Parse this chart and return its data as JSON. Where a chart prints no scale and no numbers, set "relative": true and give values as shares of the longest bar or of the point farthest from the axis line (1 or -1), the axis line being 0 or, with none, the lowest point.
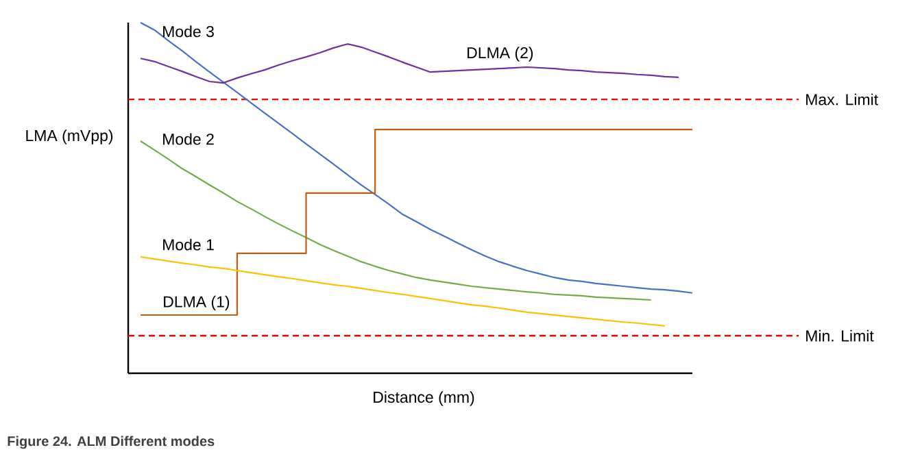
{
  "chart_data": {
    "type": "line",
    "relative": true,
    "title": "Figure 24.  ALM Different modes",
    "xlabel": "Distance (mm)",
    "ylabel": "LMA (mVpp)",
    "categories": [
      null,
      null,
      null,
      null,
      null,
      null,
      null,
      null,
      null,
      null,
      null,
      null,
      null,
      null,
      null,
      null,
      null,
      null,
      null,
      null,
      null,
      null,
      null,
      null,
      null,
      null,
      null,
      null,
      null,
      null,
      null,
      null,
      null,
      null,
      null,
      null,
      null,
      null,
      null,
      null,
      null
    ],
    "series": [
      {
        "name": "Mode 3",
        "color": "#4472c4",
        "values": [
          1.0,
          0.979,
          0.949,
          0.92,
          0.889,
          0.859,
          0.83,
          0.801,
          0.771,
          0.742,
          0.713,
          0.684,
          0.654,
          0.625,
          0.596,
          0.566,
          0.537,
          0.51,
          0.482,
          0.453,
          0.432,
          0.41,
          0.391,
          0.371,
          0.352,
          0.334,
          0.318,
          0.305,
          0.293,
          0.283,
          0.273,
          0.266,
          0.262,
          0.256,
          0.252,
          0.248,
          0.244,
          0.24,
          0.238,
          0.234,
          0.229
        ]
      },
      {
        "name": "DLMA (2)",
        "color": "#7030a0",
        "values": [
          0.898,
          0.889,
          0.875,
          0.861,
          0.846,
          0.832,
          0.828,
          0.842,
          0.854,
          0.865,
          0.879,
          0.891,
          0.902,
          0.914,
          0.928,
          0.939,
          0.93,
          0.916,
          0.902,
          0.887,
          0.873,
          0.859,
          0.861,
          0.863,
          0.865,
          0.867,
          0.869,
          0.871,
          0.873,
          0.871,
          0.869,
          0.865,
          0.863,
          0.859,
          0.857,
          0.855,
          0.852,
          0.85,
          0.846,
          0.844,
          null
        ]
      },
      {
        "name": "Mode 2",
        "color": "#70ad47",
        "values": [
          0.662,
          0.637,
          0.611,
          0.584,
          0.561,
          0.537,
          0.514,
          0.49,
          0.469,
          0.447,
          0.426,
          0.406,
          0.387,
          0.367,
          0.35,
          0.334,
          0.318,
          0.305,
          0.293,
          0.283,
          0.273,
          0.266,
          0.26,
          0.254,
          0.248,
          0.244,
          0.24,
          0.236,
          0.232,
          0.229,
          0.225,
          0.223,
          0.221,
          0.217,
          0.215,
          0.213,
          0.211,
          0.209,
          null,
          null,
          null
        ]
      },
      {
        "name": "DLMA (1)",
        "color": "#c55a11",
        "type": "step",
        "values": [
          0.166,
          0.166,
          0.166,
          0.166,
          0.166,
          0.166,
          0.166,
          0.342,
          0.342,
          0.342,
          0.342,
          0.342,
          0.514,
          0.514,
          0.514,
          0.514,
          0.514,
          0.695,
          0.695,
          0.695,
          0.695,
          0.695,
          0.695,
          0.695,
          0.695,
          0.695,
          0.695,
          0.695,
          0.695,
          0.695,
          0.695,
          0.695,
          0.695,
          0.695,
          0.695,
          0.695,
          0.695,
          0.695,
          0.695,
          0.695,
          0.695
        ]
      },
      {
        "name": "Mode 1",
        "color": "#ffc000",
        "values": [
          0.332,
          0.326,
          0.32,
          0.314,
          0.309,
          0.303,
          0.299,
          0.293,
          0.287,
          0.281,
          0.275,
          0.27,
          0.264,
          0.258,
          0.252,
          0.248,
          0.242,
          0.236,
          0.23,
          0.225,
          0.219,
          0.213,
          0.207,
          0.201,
          0.195,
          0.191,
          0.186,
          0.18,
          0.174,
          0.17,
          0.166,
          0.162,
          0.158,
          0.154,
          0.15,
          0.146,
          0.143,
          0.139,
          0.135,
          null,
          null
        ]
      }
    ],
    "ref_lines": [
      {
        "axis": "y",
        "value": 0.781,
        "label": "Max. Limit",
        "color": "#ff0000",
        "line_style": "dashed"
      },
      {
        "axis": "y",
        "value": 0.107,
        "label": "Min. Limit",
        "color": "#ff0000",
        "line_style": "dashed"
      }
    ]
  }
}
